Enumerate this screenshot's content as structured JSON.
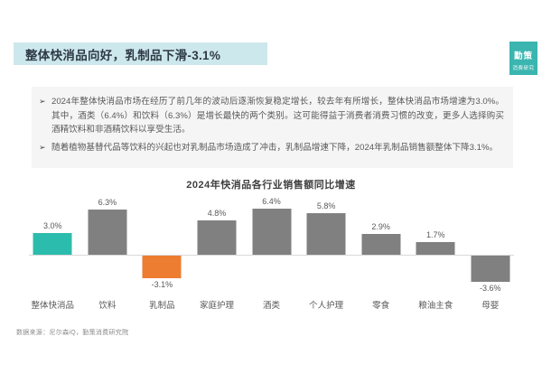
{
  "slide": {
    "title": "整体快消品向好，乳制品下滑-3.1%",
    "footer": "数据来源：尼尔森iQ，勤策消费研究院"
  },
  "logo": {
    "line1": "勤策",
    "line2": "消费研究"
  },
  "bullets": {
    "marker": "➢",
    "items": [
      {
        "text": "2024年整体快消品市场在经历了前几年的波动后逐渐恢复稳定增长，较去年有所增长，整体快消品市场增速为3.0%。其中，酒类（6.4%）和饮料（6.3%）是增长最快的两个类别。这可能得益于消费者消费习惯的改变，更多人选择购买酒精饮料和非酒精饮料以享受生活。"
      },
      {
        "text": "随着植物基替代品等饮料的兴起也对乳制品市场造成了冲击，乳制品增速下降，2024年乳制品销售额整体下降3.1%。"
      }
    ]
  },
  "colors": {
    "banner_bg": "#cde8ec",
    "logo_bg": "#3ab5b0",
    "accent_teal": "#2cbcad",
    "bar_gray": "#808080",
    "negative_orange": "#ed7d31",
    "axis_line": "#d9d9d9"
  },
  "chart_data": {
    "type": "bar",
    "title": "2024年快消品各行业销售额同比增速",
    "categories": [
      "整体快消品",
      "饮料",
      "乳制品",
      "家庭护理",
      "酒类",
      "个人护理",
      "零食",
      "粮油主食",
      "母婴"
    ],
    "values": [
      3.0,
      6.3,
      -3.1,
      4.8,
      6.4,
      5.8,
      2.9,
      1.7,
      -3.6
    ],
    "value_labels": [
      "3.0%",
      "6.3%",
      "-3.1%",
      "4.8%",
      "6.4%",
      "5.8%",
      "2.9%",
      "1.7%",
      "-3.6%"
    ],
    "bar_colors": [
      "#2cbcad",
      "#808080",
      "#ed7d31",
      "#808080",
      "#808080",
      "#808080",
      "#808080",
      "#808080",
      "#808080"
    ],
    "xlabel": "",
    "ylabel": "",
    "ylim": [
      -5,
      8
    ],
    "grid": false,
    "legend": false,
    "data_labels": true
  }
}
